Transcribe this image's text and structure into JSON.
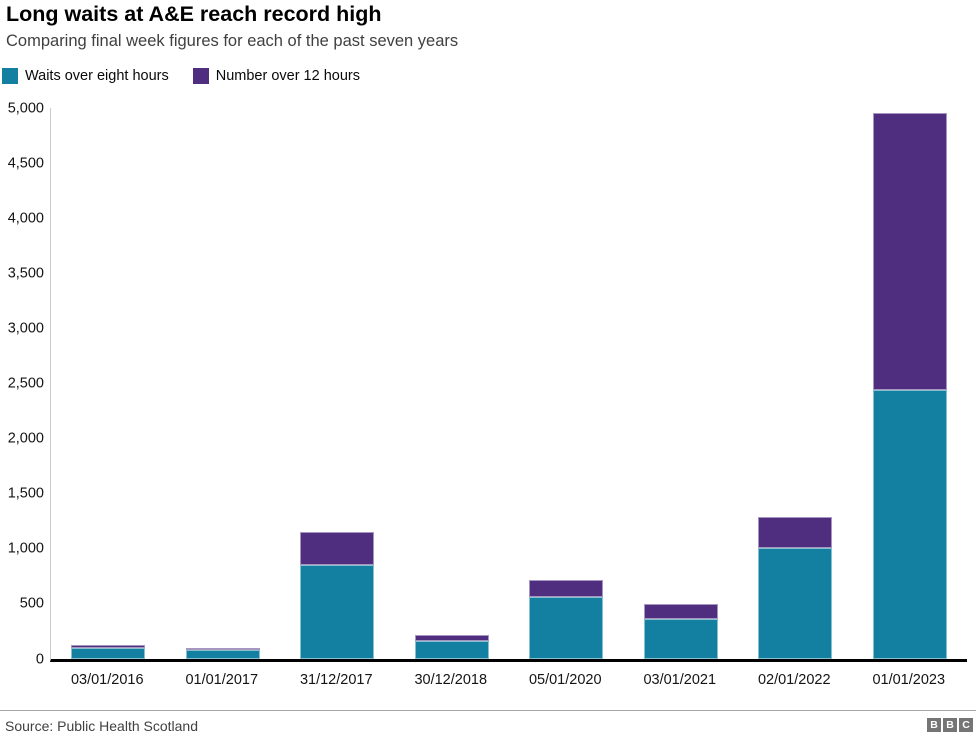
{
  "legend": {
    "items": [
      {
        "label": "Waits over eight hours",
        "color": "#1380A1"
      },
      {
        "label": "Number over 12 hours",
        "color": "#4F2D7F"
      }
    ]
  },
  "chart_data": {
    "type": "bar",
    "stacked": true,
    "title": "Long waits at A&E reach record high",
    "subtitle": "Comparing final week figures for each of the past seven years",
    "categories": [
      "03/01/2016",
      "01/01/2017",
      "31/12/2017",
      "30/12/2018",
      "05/01/2020",
      "03/01/2021",
      "02/01/2022",
      "01/01/2023"
    ],
    "series": [
      {
        "name": "Waits over eight hours",
        "color": "#1380A1",
        "values": [
          100,
          85,
          850,
          165,
          560,
          360,
          1005,
          2445
        ]
      },
      {
        "name": "Number over 12 hours",
        "color": "#4F2D7F",
        "values": [
          25,
          15,
          300,
          55,
          155,
          135,
          280,
          2510
        ]
      }
    ],
    "xlabel": "",
    "ylabel": "",
    "ylim": [
      0,
      5000
    ],
    "ytick_step": 500,
    "grid": false,
    "legend_position": "top-left"
  },
  "footer": {
    "source": "Source: Public Health Scotland",
    "logo_blocks": [
      "B",
      "B",
      "C"
    ]
  }
}
